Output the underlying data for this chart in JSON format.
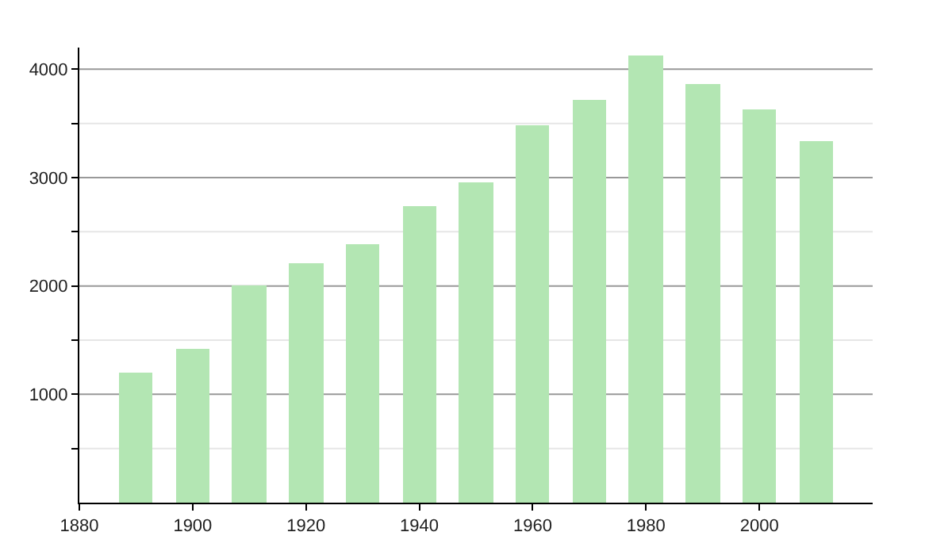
{
  "chart_data": {
    "type": "bar",
    "x": [
      1890,
      1900,
      1910,
      1920,
      1930,
      1940,
      1950,
      1960,
      1970,
      1980,
      1990,
      2000,
      2010
    ],
    "values": [
      1200,
      1420,
      2000,
      2210,
      2380,
      2740,
      2960,
      3480,
      3720,
      4120,
      3870,
      3630,
      3340
    ],
    "color": "#b3e6b3",
    "xlim": [
      1880,
      2020
    ],
    "xticks": [
      1880,
      1900,
      1920,
      1940,
      1960,
      1980,
      2000
    ],
    "ylim": [
      0,
      4200
    ],
    "yticks": [
      {
        "value": 500,
        "label": null
      },
      1000,
      {
        "value": 1500,
        "label": null
      },
      2000,
      {
        "value": 2500,
        "label": null
      },
      3000,
      {
        "value": 3500,
        "label": null
      },
      4000
    ],
    "grid": "y"
  }
}
